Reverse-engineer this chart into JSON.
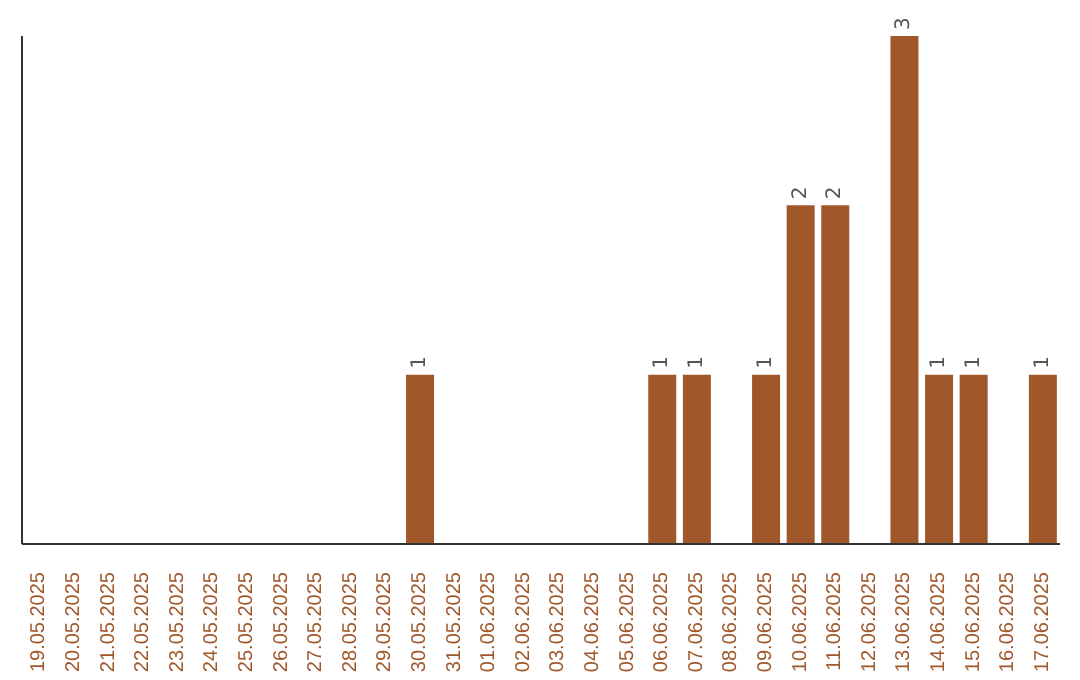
{
  "chart_data": {
    "type": "bar",
    "relative": false,
    "categories": [
      "19.05.2025",
      "20.05.2025",
      "21.05.2025",
      "22.05.2025",
      "23.05.2025",
      "24.05.2025",
      "25.05.2025",
      "26.05.2025",
      "27.05.2025",
      "28.05.2025",
      "29.05.2025",
      "30.05.2025",
      "31.05.2025",
      "01.06.2025",
      "02.06.2025",
      "03.06.2025",
      "04.06.2025",
      "05.06.2025",
      "06.06.2025",
      "07.06.2025",
      "08.06.2025",
      "09.06.2025",
      "10.06.2025",
      "11.06.2025",
      "12.06.2025",
      "13.06.2025",
      "14.06.2025",
      "15.06.2025",
      "16.06.2025",
      "17.06.2025"
    ],
    "values": [
      0,
      0,
      0,
      0,
      0,
      0,
      0,
      0,
      0,
      0,
      0,
      1,
      0,
      0,
      0,
      0,
      0,
      0,
      1,
      1,
      0,
      1,
      2,
      2,
      0,
      3,
      1,
      1,
      0,
      1
    ],
    "value_labels": [
      null,
      null,
      null,
      null,
      null,
      null,
      null,
      null,
      null,
      null,
      null,
      "1",
      null,
      null,
      null,
      null,
      null,
      null,
      "1",
      "1",
      null,
      "1",
      "2",
      "2",
      null,
      "3",
      "1",
      "1",
      null,
      "1"
    ],
    "color": "#a0572a"
  }
}
